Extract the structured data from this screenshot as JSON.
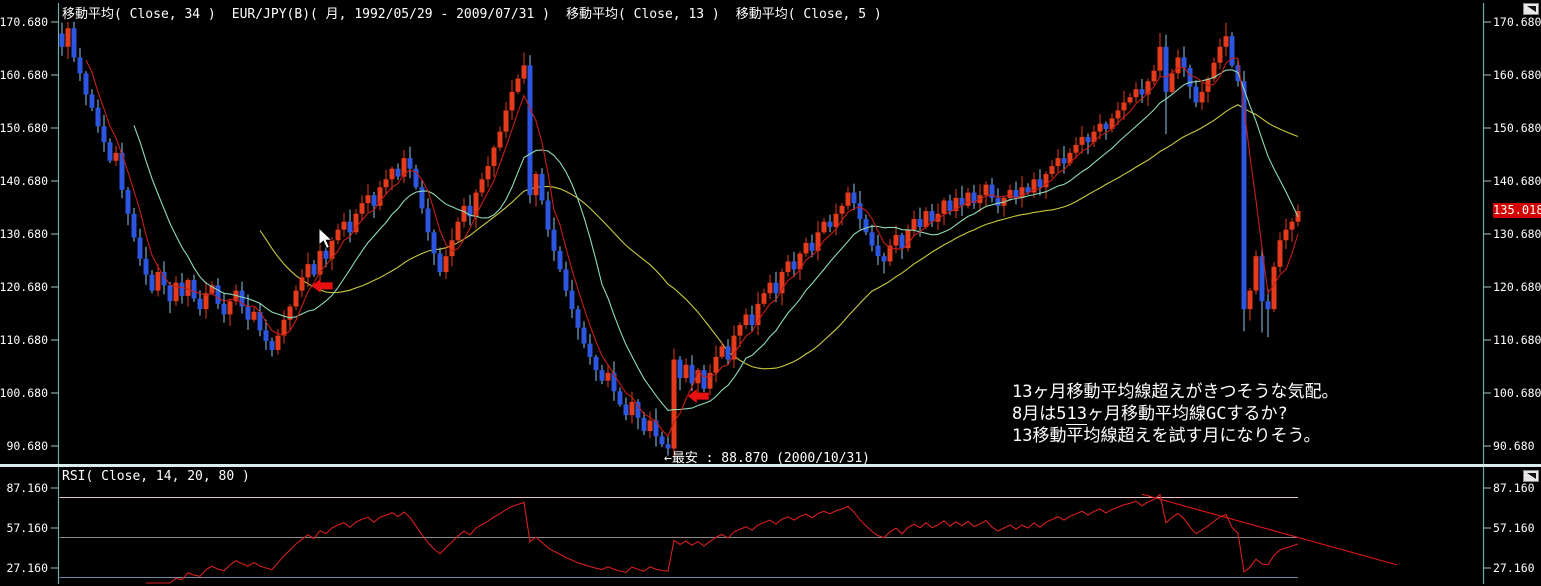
{
  "header": {
    "ma34_label": "移動平均( Close, 34 )",
    "symbol_label": "EUR/JPY(B)( 月, 1992/05/29 - 2009/07/31 )",
    "ma13_label": "移動平均( Close, 13 )",
    "ma5_label": "移動平均( Close, 5 )"
  },
  "rsi_panel": {
    "title": "RSI( Close, 14, 20, 80 )"
  },
  "price_badge": {
    "text": "135.018",
    "color": "#d40000"
  },
  "annotations": {
    "low_note": "←最安 : 88.870 (2000/10/31)",
    "comment_line1": "13ヶ月移動平均線超えがきつそうな気配。",
    "comment_line2_pre": "8月は5",
    "comment_line2_underline": "13",
    "comment_line2_post": "ヶ月移動平均線GCするか?",
    "comment_line3": "13移動平均線超えを試す月になりそう。"
  },
  "chart_data": {
    "type": "candlestick",
    "title": "EUR/JPY(B) monthly 1992/05/29 - 2009/07/31",
    "timeframe": "monthly",
    "x_start_month": "1992/05",
    "x_end_month": "2009/07",
    "price_axis_ticks": [
      170.68,
      160.68,
      150.68,
      140.68,
      130.68,
      120.68,
      110.68,
      100.68,
      90.68
    ],
    "price_tick_labels": [
      "170.680",
      "160.680",
      "150.680",
      "140.680",
      "130.680",
      "120.680",
      "110.680",
      "100.680",
      "90.680"
    ],
    "first_open": 168.5,
    "closes": [
      166,
      169.5,
      164,
      161,
      157,
      154.5,
      151,
      148,
      144.5,
      146,
      139,
      134.5,
      130,
      126,
      123,
      120,
      123.5,
      121,
      118,
      121.5,
      119,
      122,
      118.5,
      116.5,
      119.5,
      121,
      117.5,
      115.5,
      118,
      120,
      117,
      114.5,
      116,
      112.5,
      110.5,
      108.8,
      111.5,
      114.5,
      117,
      120,
      122.5,
      125,
      123,
      127.5,
      126,
      129.5,
      131.5,
      133,
      131,
      134.5,
      136.5,
      138,
      136,
      139.5,
      141,
      143,
      141.5,
      145,
      143,
      139.5,
      135.5,
      131,
      127,
      123.5,
      126.5,
      129.5,
      133,
      136,
      134,
      138.5,
      141,
      143.5,
      147,
      150,
      154,
      157.5,
      160,
      162.5,
      138,
      142,
      137,
      131.5,
      127.5,
      124,
      120,
      116.5,
      113,
      110,
      107.5,
      105,
      103,
      104.5,
      101,
      98.5,
      96.5,
      99,
      96,
      93.5,
      95.5,
      92.5,
      91,
      90.2,
      107,
      103.5,
      106,
      102.5,
      105,
      101.5,
      104.5,
      107.5,
      109.5,
      107,
      111.5,
      113.5,
      115.5,
      113.5,
      117.5,
      119.5,
      121.5,
      119.5,
      123.5,
      125.5,
      124,
      127,
      129,
      127.5,
      131,
      133,
      132,
      134.5,
      136,
      138.5,
      136.5,
      133.5,
      131,
      128.5,
      126.5,
      125.5,
      128.5,
      130.5,
      128,
      131.5,
      133.5,
      132,
      135,
      133,
      134.5,
      137,
      135,
      137.5,
      136,
      138.5,
      136.5,
      138,
      140,
      137.5,
      136,
      137.5,
      139,
      137.5,
      139.5,
      138.5,
      141,
      139.5,
      142,
      143.5,
      145,
      144,
      146,
      147.5,
      149,
      148,
      150,
      151.5,
      150.5,
      152.5,
      154,
      155.5,
      156.5,
      158,
      157,
      159.5,
      161.5,
      166,
      157.5,
      161,
      164,
      162,
      158.5,
      155.5,
      157.5,
      160,
      163,
      166,
      168,
      162.5,
      159.5,
      116.5,
      120,
      126.5,
      118,
      116.5,
      124.5,
      129.5,
      131.5,
      133,
      135.018
    ],
    "wick_overrides": {
      "1": {
        "high": 170.68
      },
      "35": {
        "low": 107.6
      },
      "77": {
        "high": 164.9
      },
      "101": {
        "low": 88.87
      },
      "183": {
        "high": 168.6
      },
      "184": {
        "low": 149.5
      },
      "194": {
        "high": 170.55
      },
      "197": {
        "low": 112.3
      },
      "200": {
        "low": 112.1
      },
      "201": {
        "low": 111.2
      }
    },
    "overlays": [
      {
        "name": "MA34",
        "period": 34,
        "color": "#c9c940"
      },
      {
        "name": "MA13",
        "period": 13,
        "color": "#8fdab4"
      },
      {
        "name": "MA5",
        "period": 5,
        "color": "#c41f1a"
      }
    ],
    "up_color": "#e33b1c",
    "down_color": "#2c55e0",
    "down_wick_color": "#8cc8ec",
    "record_low": {
      "value": 88.87,
      "date": "2000/10/31"
    },
    "last_close": 135.018,
    "arrows": [
      {
        "month_index": 41.6,
        "price": 120.9
      },
      {
        "month_index": 104.3,
        "price": 100.1
      }
    ],
    "rsi": {
      "type": "line",
      "period": 14,
      "levels": [
        20,
        50,
        80
      ],
      "level_colors": [
        "#7888a8",
        "#8a8a8a",
        "#e8c4c4"
      ],
      "axis_ticks": [
        87.16,
        57.16,
        27.16
      ],
      "tick_labels": [
        "87.160",
        "57.160",
        "27.160"
      ],
      "color": "#d42020",
      "trendline": {
        "from_month_index": 180,
        "from_value": 82.5,
        "to_month_index": 222.5,
        "to_value": 29.5
      }
    }
  }
}
